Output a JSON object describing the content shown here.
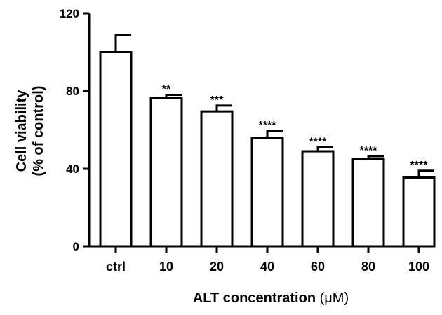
{
  "chart_data": {
    "type": "bar",
    "title": "",
    "xlabel_main": "ALT concentration ",
    "xlabel_unit": "(μM)",
    "ylabel_line1": "Cell viability",
    "ylabel_line2": "(% of control)",
    "ylim": [
      0,
      120
    ],
    "yticks": [
      0,
      40,
      80,
      120
    ],
    "categories": [
      "ctrl",
      "10",
      "20",
      "40",
      "60",
      "80",
      "100"
    ],
    "values": [
      100,
      76.5,
      69.5,
      56,
      49,
      45,
      35.5
    ],
    "errors": [
      9,
      1.5,
      3,
      3.5,
      2,
      1.5,
      3.5
    ],
    "significance": [
      "",
      "**",
      "***",
      "****",
      "****",
      "****",
      "****"
    ],
    "grid": false
  }
}
